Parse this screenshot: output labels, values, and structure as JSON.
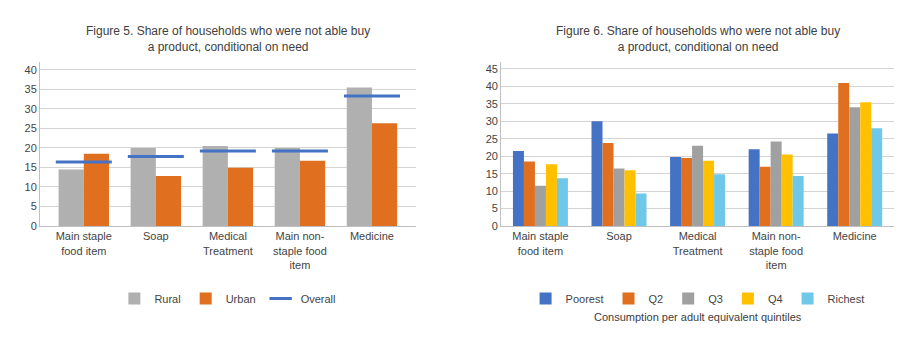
{
  "chart_data": [
    {
      "type": "bar",
      "title": "Figure 5. Share of households who were not able buy\na product, conditional on need",
      "categories": [
        "Main staple\nfood item",
        "Soap",
        "Medical\nTreatment",
        "Main non-\nstaple food\nitem",
        "Medicine"
      ],
      "series": [
        {
          "name": "Rural",
          "color": "#b0b0b0",
          "values": [
            14.5,
            20.0,
            20.5,
            20.0,
            35.5
          ]
        },
        {
          "name": "Urban",
          "color": "#e07020",
          "values": [
            18.5,
            12.8,
            14.9,
            16.7,
            26.3
          ]
        },
        {
          "name": "Overall",
          "type": "scatter",
          "marker": "line-ew",
          "color": "#4472c4",
          "values": [
            16.4,
            17.8,
            19.2,
            19.2,
            33.3
          ]
        }
      ],
      "ylim": [
        0,
        42
      ],
      "yticks": [
        0,
        5,
        10,
        15,
        20,
        25,
        30,
        35,
        40
      ],
      "grid": true,
      "legend": "bottom"
    },
    {
      "type": "bar",
      "title": "Figure 6. Share of households who were not able buy\na product, conditional on need",
      "xlabel": "Consumption per adult equivalent quintiles",
      "categories": [
        "Main staple\nfood item",
        "Soap",
        "Medical\nTreatment",
        "Main non-\nstaple food\nitem",
        "Medicine"
      ],
      "series": [
        {
          "name": "Poorest",
          "color": "#4472c4",
          "values": [
            21.5,
            30.0,
            19.8,
            22.0,
            26.5
          ]
        },
        {
          "name": "Q2",
          "color": "#e07020",
          "values": [
            18.5,
            23.8,
            19.5,
            17.0,
            41.0
          ]
        },
        {
          "name": "Q3",
          "color": "#a0a0a0",
          "values": [
            11.5,
            16.5,
            23.0,
            24.2,
            34.0
          ]
        },
        {
          "name": "Q4",
          "color": "#ffc000",
          "values": [
            17.7,
            16.0,
            18.7,
            20.5,
            35.5
          ]
        },
        {
          "name": "Richest",
          "color": "#70c8e8",
          "values": [
            13.7,
            9.3,
            14.8,
            14.3,
            28.0
          ]
        }
      ],
      "ylim": [
        0,
        47
      ],
      "yticks": [
        0,
        5,
        10,
        15,
        20,
        25,
        30,
        35,
        40,
        45
      ],
      "grid": true,
      "legend": "bottom"
    }
  ]
}
